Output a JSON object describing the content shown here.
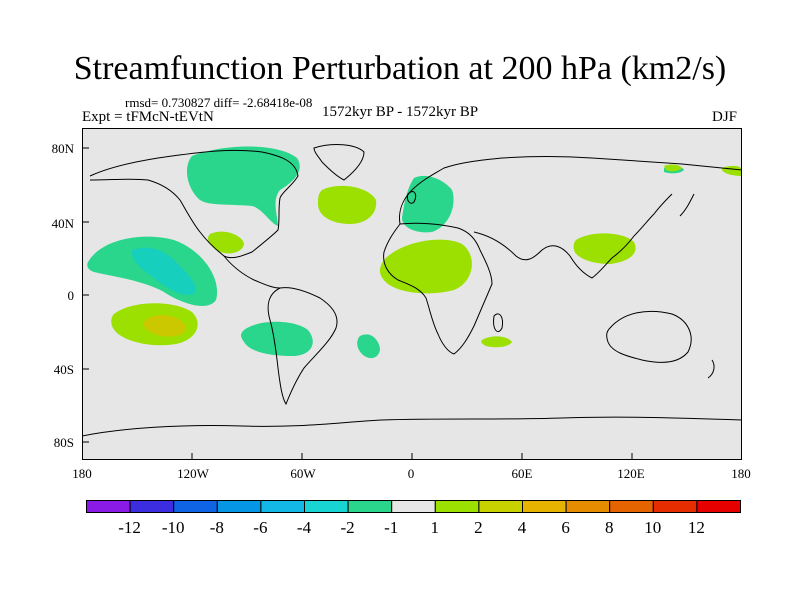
{
  "title": "Streamfunction Perturbation at 200 hPa (km2/s)",
  "stats_line": "rmsd= 0.730827 diff= -2.68418e-08",
  "experiment": "Expt = tFMcN-tEVtN",
  "period": "1572kyr BP - 1572kyr BP",
  "season": "DJF",
  "colors": {
    "background": "#e6e6e6",
    "coast": "#000000",
    "minus1": "#2ad58c",
    "minus2": "#16cfbd",
    "plus1": "#9be000",
    "plus2": "#cbc800"
  },
  "axes": {
    "y_labels": [
      "80N",
      "40N",
      "0",
      "40S",
      "80S"
    ],
    "x_labels": [
      "180",
      "120W",
      "60W",
      "0",
      "60E",
      "120E",
      "180"
    ]
  },
  "colorbar": {
    "levels": [
      "-12",
      "-10",
      "-8",
      "-6",
      "-4",
      "-2",
      "-1",
      "1",
      "2",
      "4",
      "6",
      "8",
      "10",
      "12"
    ],
    "colors": [
      "#8a1ae6",
      "#3c2de0",
      "#0f64e6",
      "#0596e6",
      "#14b8e6",
      "#18d4d2",
      "#2ad58c",
      "#e6e6e6",
      "#9be000",
      "#c7d200",
      "#e6b400",
      "#e68c00",
      "#e66400",
      "#e62d00",
      "#e60000"
    ]
  }
}
